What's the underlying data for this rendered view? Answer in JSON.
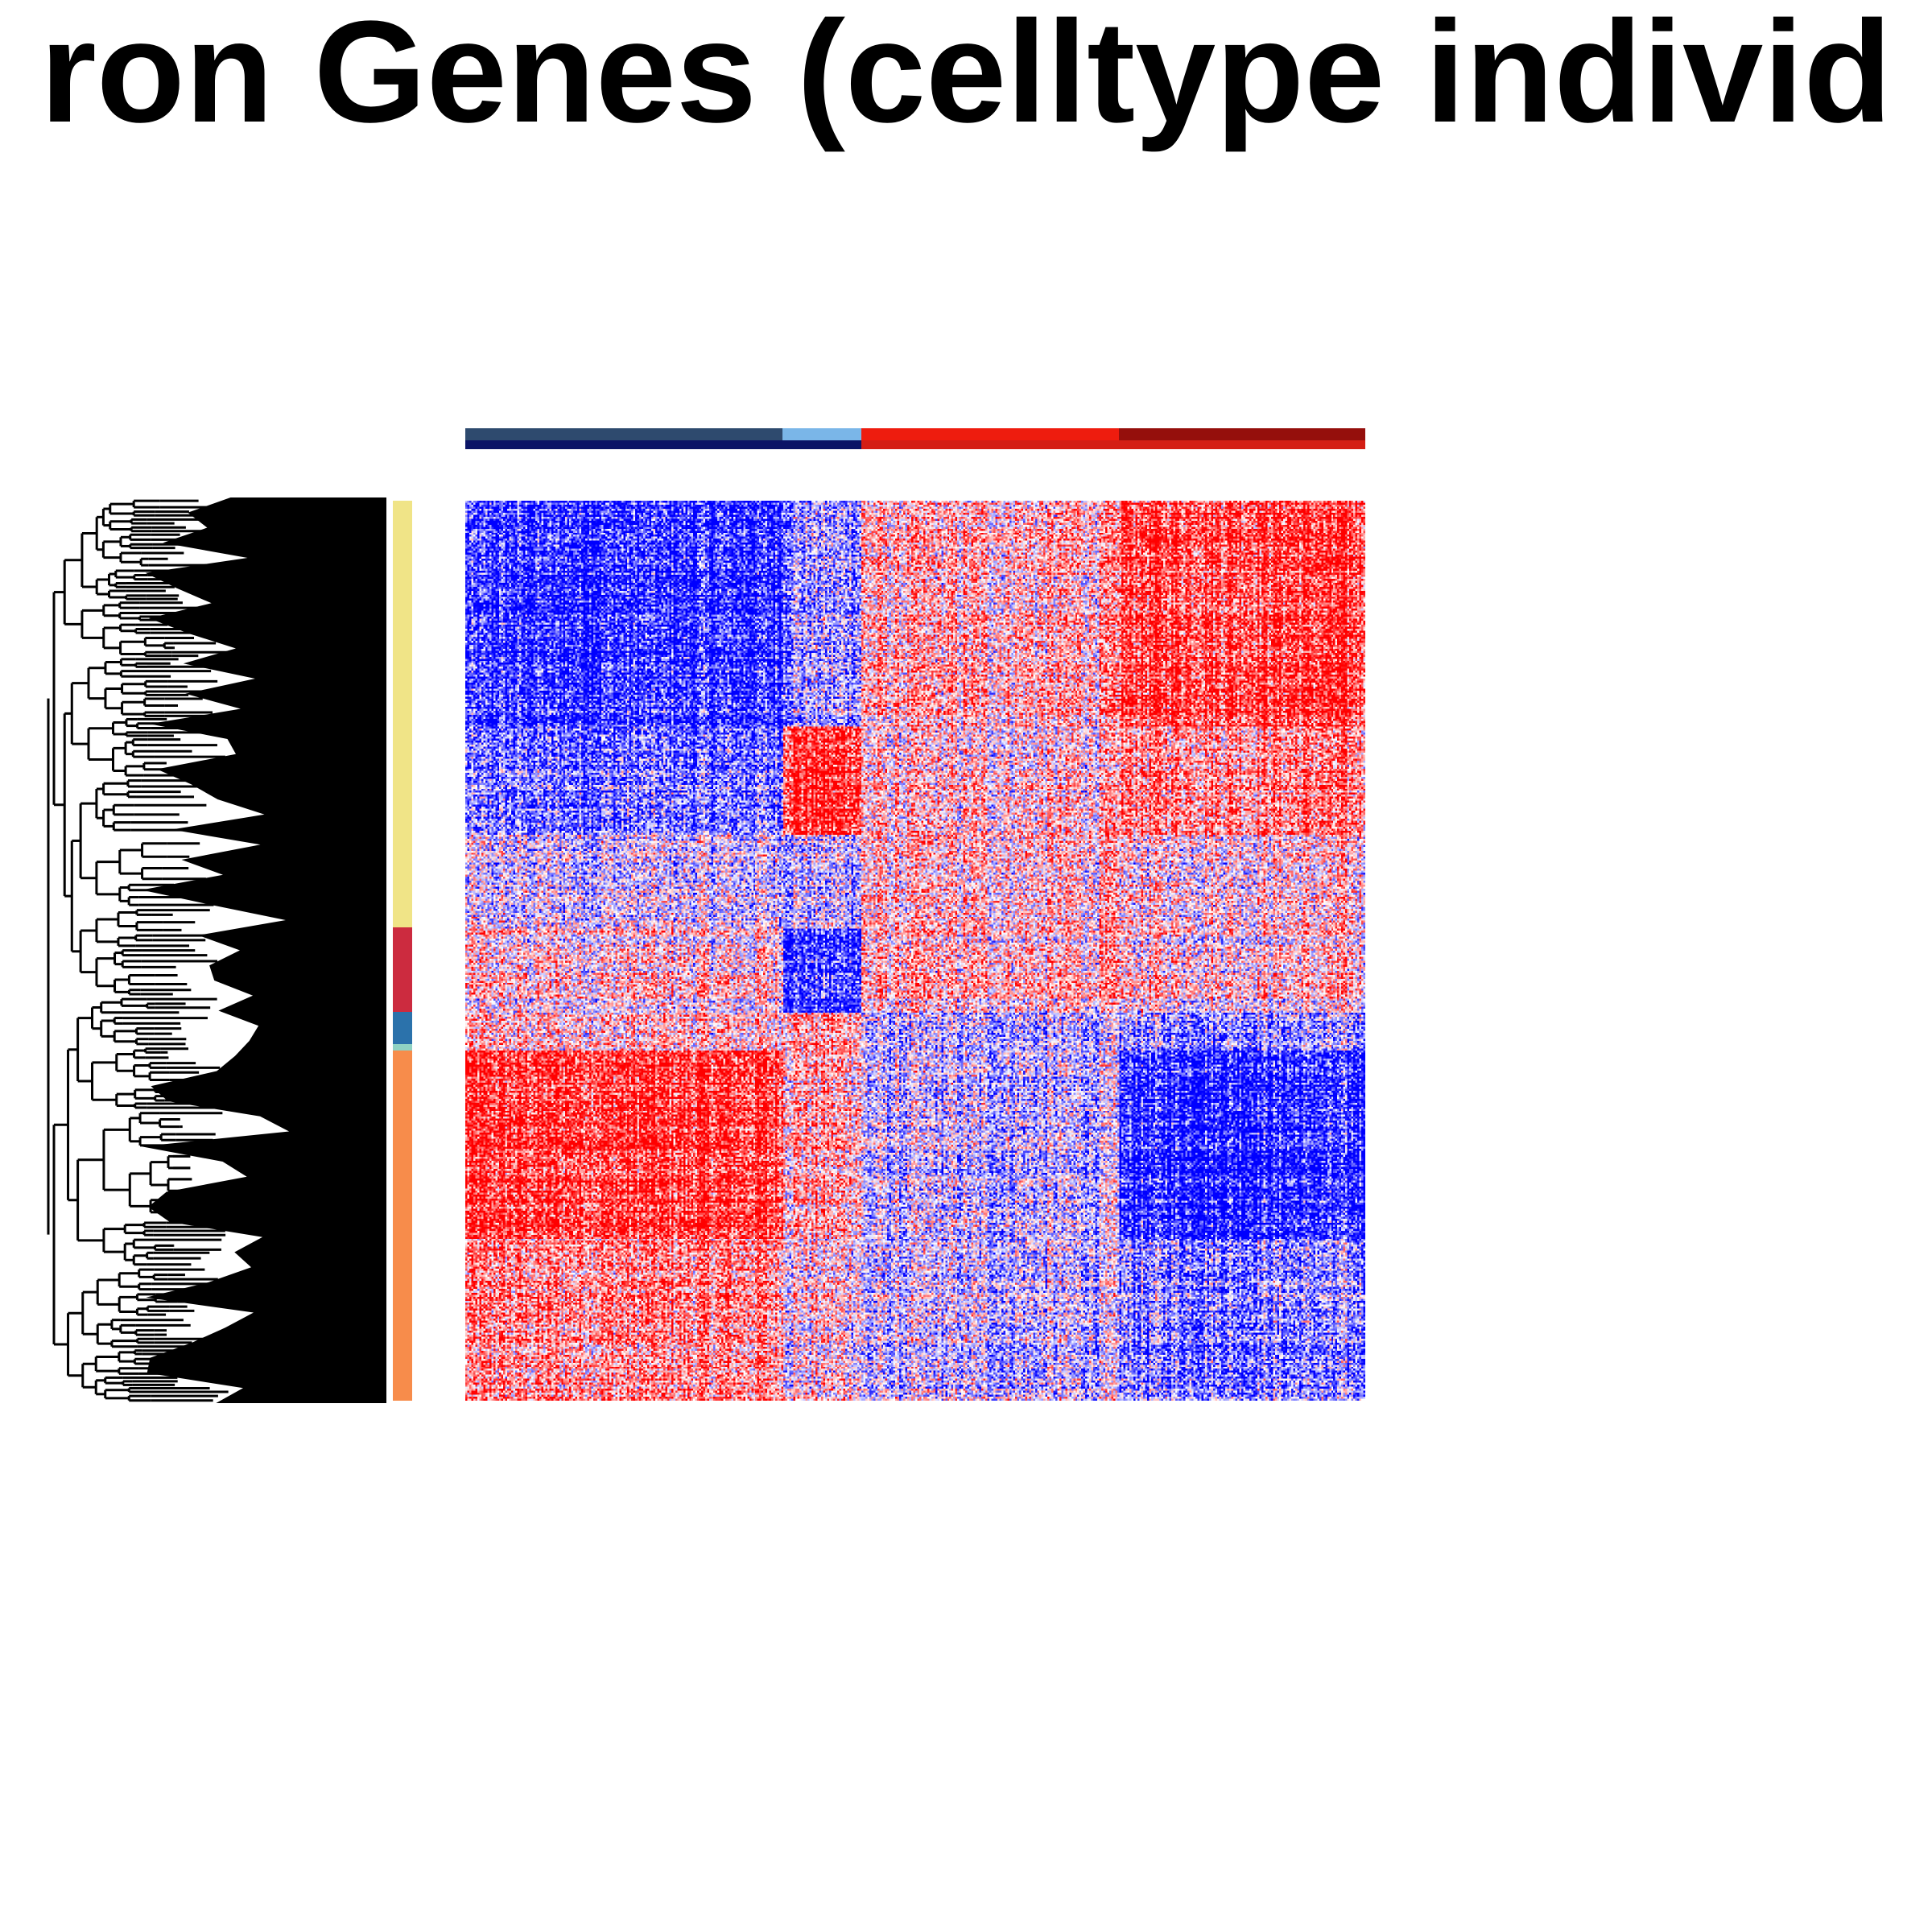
{
  "chart_data": {
    "type": "heatmap",
    "title": "ron Genes (celltype individ",
    "xlabel": "",
    "ylabel": "",
    "color_scale": {
      "low": "#0000ff",
      "mid": "#ffffff",
      "high": "#ff0000"
    },
    "row_dendrogram": true,
    "column_annotation": {
      "upper": [
        {
          "from": 0.0,
          "to": 0.352,
          "color": "#2e4a6e"
        },
        {
          "from": 0.352,
          "to": 0.44,
          "color": "#7ab6e8"
        },
        {
          "from": 0.44,
          "to": 0.726,
          "color": "#ee1c0e"
        },
        {
          "from": 0.726,
          "to": 1.0,
          "color": "#950f0c"
        }
      ],
      "lower": [
        {
          "from": 0.0,
          "to": 0.44,
          "color": "#0b1466"
        },
        {
          "from": 0.44,
          "to": 1.0,
          "color": "#d41e14"
        }
      ]
    },
    "row_clusters": [
      {
        "from": 0.0,
        "to": 0.474,
        "color": "#f0e487"
      },
      {
        "from": 0.474,
        "to": 0.568,
        "color": "#cc2b3f"
      },
      {
        "from": 0.568,
        "to": 0.604,
        "color": "#2b72ab"
      },
      {
        "from": 0.604,
        "to": 0.611,
        "color": "#8fd2c3"
      },
      {
        "from": 0.611,
        "to": 1.0,
        "color": "#f78c4b"
      }
    ],
    "column_groups": [
      0.0,
      0.352,
      0.44,
      0.726,
      1.0
    ],
    "row_blocks": [
      0.0,
      0.25,
      0.37,
      0.474,
      0.568,
      0.611,
      0.82,
      1.0
    ],
    "block_means": [
      [
        -0.85,
        -0.35,
        0.25,
        0.8
      ],
      [
        -0.6,
        0.85,
        0.1,
        0.45
      ],
      [
        -0.15,
        -0.2,
        0.15,
        0.1
      ],
      [
        0.1,
        -0.8,
        0.2,
        0.15
      ],
      [
        0.25,
        0.45,
        -0.25,
        -0.35
      ],
      [
        0.85,
        0.35,
        -0.2,
        -0.85
      ],
      [
        0.45,
        0.1,
        -0.2,
        -0.45
      ]
    ]
  }
}
